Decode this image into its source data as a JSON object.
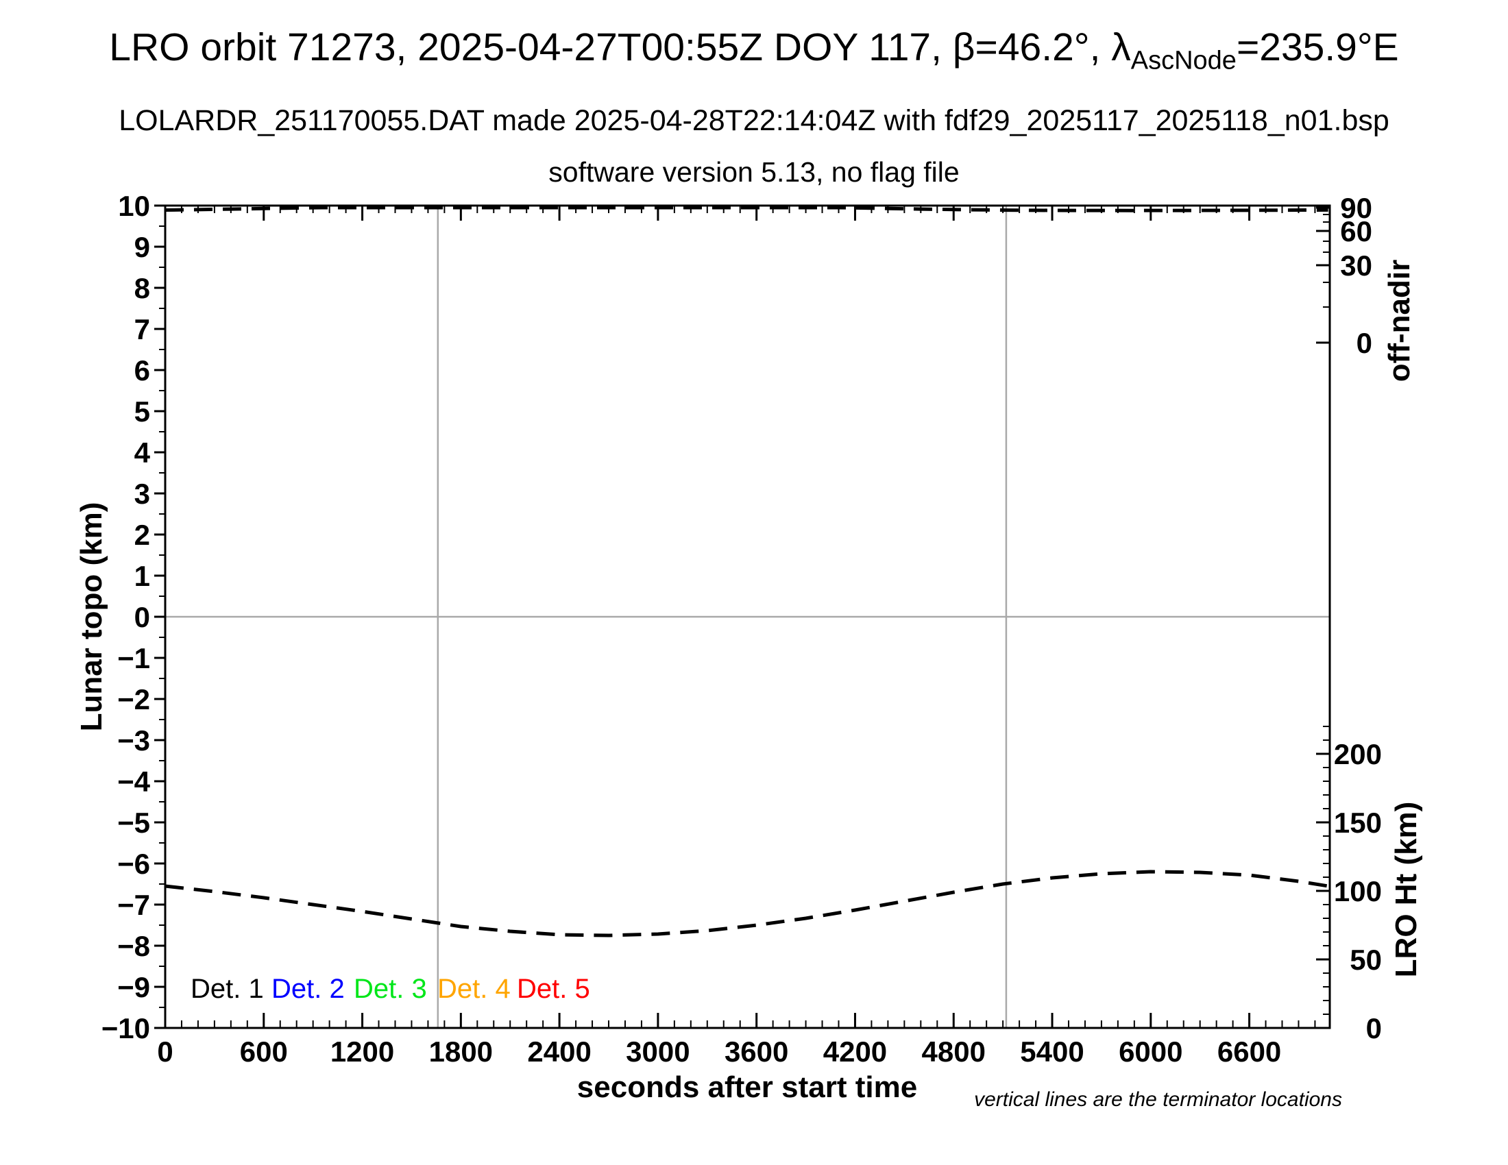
{
  "header": {
    "title_prefix": "LRO orbit 71273, 2025-04-27T00:55Z DOY 117, β=46.2°, λ",
    "title_subscript": "AscNode",
    "title_suffix": "=235.9°E",
    "subtitle1": "LOLARDR_251170055.DAT made 2025-04-28T22:14:04Z with fdf29_2025117_2025118_n01.bsp",
    "subtitle2": "software version 5.13, no flag file"
  },
  "legend": {
    "items": [
      {
        "label": "Det. 1",
        "color": "#000000"
      },
      {
        "label": "Det. 2",
        "color": "#0000ff"
      },
      {
        "label": "Det. 3",
        "color": "#00e619"
      },
      {
        "label": "Det. 4",
        "color": "#ffa500"
      },
      {
        "label": "Det. 5",
        "color": "#ff0000"
      }
    ]
  },
  "footnote": "vertical lines are the terminator locations",
  "chart_data": {
    "type": "line",
    "title": "LRO orbit 71273, 2025-04-27T00:55Z DOY 117, β=46.2°, λ_AscNode=235.9°E",
    "xlabel": "seconds after start time",
    "ylabel_left": "Lunar topo (km)",
    "ylabel_right_top": "off-nadir",
    "ylabel_right_bottom": "LRO Ht (km)",
    "grid": false,
    "colors": {
      "axis": "#000000",
      "reference_lines": "#a9a9a9",
      "curves": "#000000"
    },
    "axes": {
      "x": {
        "min": 0,
        "max": 7090,
        "major": 600,
        "minor": 100,
        "labels": [
          0,
          600,
          1200,
          1800,
          2400,
          3000,
          3600,
          4200,
          4800,
          5400,
          6000,
          6600
        ]
      },
      "left": {
        "min": -10,
        "max": 10,
        "major": 1,
        "minor": 0.5
      },
      "right_bottom": {
        "unit": "km",
        "labels": [
          0,
          50,
          100,
          150,
          200
        ],
        "minor_step": 10,
        "minor_max": 220,
        "topo_at_zero_km": -10,
        "topo_per_km": 0.0333333
      },
      "right_top": {
        "unit": "deg",
        "labels": [
          90,
          60,
          30,
          0
        ],
        "minor": [
          80,
          70,
          50,
          40,
          20,
          10
        ],
        "anchors_deg_to_topo": [
          [
            0,
            6.667
          ],
          [
            10,
            7.533
          ],
          [
            20,
            8.133
          ],
          [
            30,
            8.55
          ],
          [
            40,
            8.867
          ],
          [
            50,
            9.133
          ],
          [
            60,
            9.383
          ],
          [
            70,
            9.6
          ],
          [
            80,
            9.783
          ],
          [
            90,
            9.95
          ]
        ]
      }
    },
    "zero_line_topo": 0,
    "terminator_times_s": [
      1660,
      5120
    ],
    "series": [
      {
        "name": "off-nadir angle (deg)",
        "axis": "right_top",
        "style": "dashed",
        "points": [
          [
            0,
            86.5
          ],
          [
            200,
            87.1
          ],
          [
            400,
            87.9
          ],
          [
            600,
            88.7
          ],
          [
            800,
            89.5
          ],
          [
            950,
            90
          ],
          [
            1400,
            90
          ],
          [
            1800,
            90
          ],
          [
            2200,
            90
          ],
          [
            2600,
            90
          ],
          [
            3000,
            90
          ],
          [
            3400,
            90
          ],
          [
            3800,
            90
          ],
          [
            4100,
            90
          ],
          [
            4200,
            89.7
          ],
          [
            4400,
            88.8
          ],
          [
            4600,
            87.9
          ],
          [
            4800,
            87.2
          ],
          [
            5000,
            86.7
          ],
          [
            5120,
            86.4
          ],
          [
            5300,
            86.1
          ],
          [
            5600,
            85.9
          ],
          [
            5900,
            85.8
          ],
          [
            6200,
            85.9
          ],
          [
            6500,
            86.1
          ],
          [
            6800,
            86.3
          ],
          [
            7080,
            86.6
          ]
        ]
      },
      {
        "name": "LRO height (km)",
        "axis": "right_bottom",
        "style": "dashed",
        "points": [
          [
            0,
            103.5
          ],
          [
            300,
            99.5
          ],
          [
            600,
            95
          ],
          [
            900,
            90
          ],
          [
            1200,
            85
          ],
          [
            1500,
            79.5
          ],
          [
            1800,
            74
          ],
          [
            2100,
            70.5
          ],
          [
            2400,
            68
          ],
          [
            2700,
            67.5
          ],
          [
            3000,
            68.5
          ],
          [
            3300,
            71
          ],
          [
            3600,
            75
          ],
          [
            3900,
            80
          ],
          [
            4200,
            86
          ],
          [
            4500,
            92.5
          ],
          [
            4800,
            99
          ],
          [
            5100,
            105
          ],
          [
            5400,
            109.5
          ],
          [
            5700,
            112.5
          ],
          [
            6000,
            114
          ],
          [
            6300,
            113.5
          ],
          [
            6600,
            111.5
          ],
          [
            6900,
            107
          ],
          [
            7080,
            103.5
          ]
        ]
      }
    ]
  }
}
